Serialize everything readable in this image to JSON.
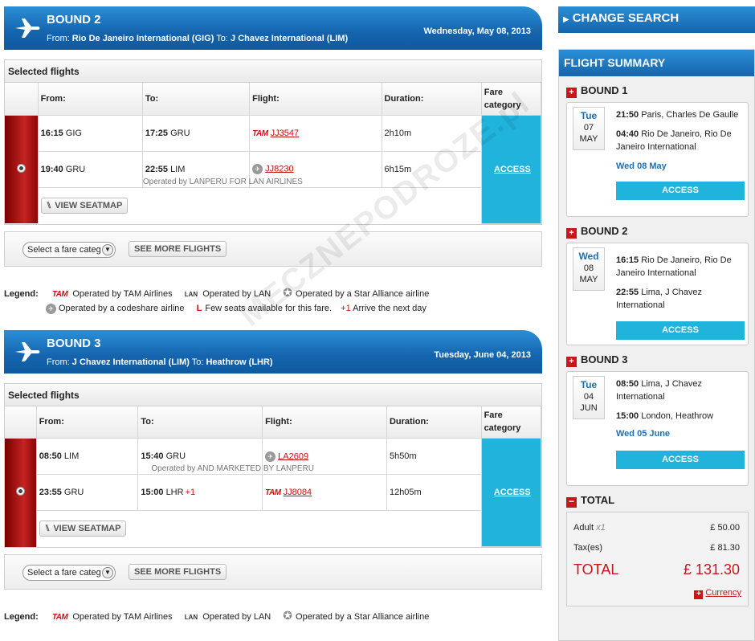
{
  "bounds": [
    {
      "title": "BOUND 2",
      "route_prefix_from": "From:",
      "from": "Rio De Janeiro International (GIG)",
      "route_to": "To:",
      "to": "J Chavez International (LIM)",
      "date": "Wednesday, May 08, 2013",
      "panel_title": "Selected flights",
      "headers": {
        "from": "From:",
        "to": "To:",
        "flight": "Flight:",
        "duration": "Duration:",
        "fare": "Fare category"
      },
      "rows": [
        {
          "from_time": "16:15",
          "from_code": "GIG",
          "to_time": "17:25",
          "to_code": "GRU",
          "to_plus": "",
          "carrier": "TAM",
          "flight": "JJ3547",
          "operated": "",
          "duration": "2h10m"
        },
        {
          "from_time": "19:40",
          "from_code": "GRU",
          "to_time": "22:55",
          "to_code": "LIM",
          "to_plus": "",
          "carrier": "codeshare",
          "flight": "JJ8230",
          "operated": "Operated by LANPERU FOR LAN AIRLINES",
          "duration": "6h15m"
        }
      ],
      "fare_link": "ACCESS",
      "seatmap": "VIEW SEATMAP",
      "select_placeholder": "Select a fare categ",
      "see_more": "SEE MORE FLIGHTS"
    },
    {
      "title": "BOUND 3",
      "route_prefix_from": "From:",
      "from": "J Chavez International (LIM)",
      "route_to": "To:",
      "to": "Heathrow (LHR)",
      "date": "Tuesday, June 04, 2013",
      "panel_title": "Selected flights",
      "headers": {
        "from": "From:",
        "to": "To:",
        "flight": "Flight:",
        "duration": "Duration:",
        "fare": "Fare category"
      },
      "rows": [
        {
          "from_time": "08:50",
          "from_code": "LIM",
          "to_time": "15:40",
          "to_code": "GRU",
          "to_plus": "",
          "carrier": "codeshare",
          "flight": "LA2609",
          "operated": "Operated by AND MARKETED BY LANPERU",
          "duration": "5h50m"
        },
        {
          "from_time": "23:55",
          "from_code": "GRU",
          "to_time": "15:00",
          "to_code": "LHR",
          "to_plus": "+1",
          "carrier": "TAM",
          "flight": "JJ8084",
          "operated": "",
          "duration": "12h05m"
        }
      ],
      "fare_link": "ACCESS",
      "seatmap": "VIEW SEATMAP",
      "select_placeholder": "Select a fare categ",
      "see_more": "SEE MORE FLIGHTS"
    }
  ],
  "legend": {
    "label": "Legend:",
    "tam_logo": "TAM",
    "tam": "Operated by TAM Airlines",
    "lan_logo": "LAN",
    "lan": "Operated by LAN",
    "star": "Operated by a Star Alliance airline",
    "codeshare": "Operated by a codeshare airline",
    "seats": "Few seats available for this fare.",
    "plus1_sym": "+1",
    "plus1": "Arrive the next day"
  },
  "sidebar": {
    "change_search": "CHANGE SEARCH",
    "summary_title": "FLIGHT SUMMARY",
    "bounds": [
      {
        "title": "BOUND 1",
        "dow": "Tue",
        "day": "07",
        "mon": "MAY",
        "dep_time": "21:50",
        "dep_place": "Paris, Charles De Gaulle",
        "arr_time": "04:40",
        "arr_place": "Rio De Janeiro, Rio De Janeiro International",
        "arr_date": "Wed 08 May",
        "button": "ACCESS"
      },
      {
        "title": "BOUND 2",
        "dow": "Wed",
        "day": "08",
        "mon": "MAY",
        "dep_time": "16:15",
        "dep_place": "Rio De Janeiro, Rio De Janeiro International",
        "arr_time": "22:55",
        "arr_place": "Lima, J Chavez International",
        "arr_date": "",
        "button": "ACCESS"
      },
      {
        "title": "BOUND 3",
        "dow": "Tue",
        "day": "04",
        "mon": "JUN",
        "dep_time": "08:50",
        "dep_place": "Lima, J Chavez International",
        "arr_time": "15:00",
        "arr_place": "London, Heathrow",
        "arr_date": "Wed 05 June",
        "button": "ACCESS"
      }
    ],
    "total": {
      "title": "TOTAL",
      "adult_label": "Adult",
      "adult_mult": "x1",
      "adult_value": "£ 50.00",
      "tax_label": "Tax(es)",
      "tax_value": "£ 81.30",
      "total_label": "TOTAL",
      "total_value": "£ 131.30",
      "currency": "Currency"
    }
  },
  "watermark": "MECZNEPODROZE.pl"
}
